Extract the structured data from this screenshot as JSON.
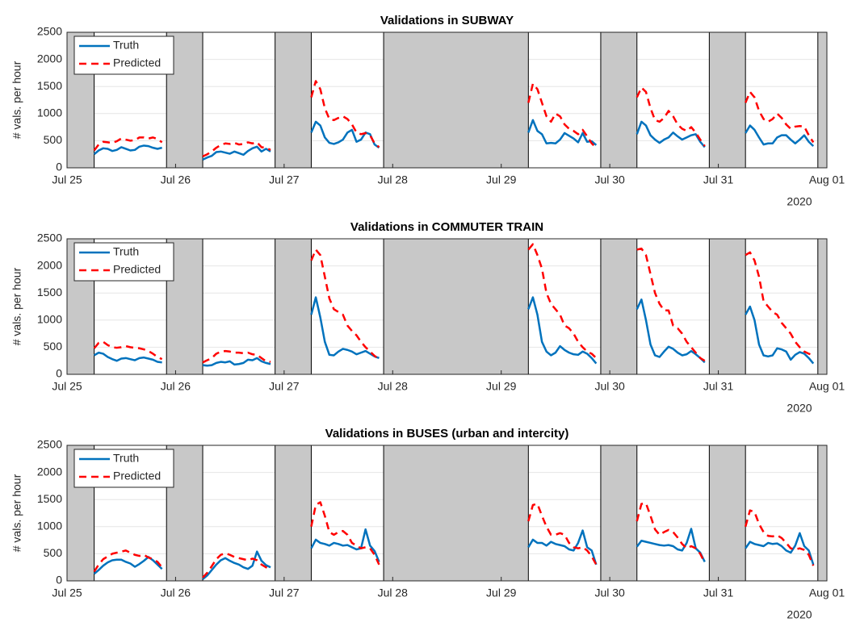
{
  "chart_data": [
    {
      "type": "line",
      "title": "Validations in SUBWAY",
      "ylabel": "# vals. per hour",
      "year_label": "2020",
      "xlim": [
        0,
        168
      ],
      "ylim": [
        0,
        2500
      ],
      "yticks": [
        0,
        500,
        1000,
        1500,
        2000,
        2500
      ],
      "xticks": [
        {
          "value": 0,
          "label": "Jul 25"
        },
        {
          "value": 24,
          "label": "Jul 26"
        },
        {
          "value": 48,
          "label": "Jul 27"
        },
        {
          "value": 72,
          "label": "Jul 28"
        },
        {
          "value": 96,
          "label": "Jul 29"
        },
        {
          "value": 120,
          "label": "Jul 30"
        },
        {
          "value": 144,
          "label": "Jul 31"
        },
        {
          "value": 168,
          "label": "Aug 01"
        }
      ],
      "grid": true,
      "legend": "upper left",
      "shade_color": "#c8c8c8",
      "closures": [
        [
          0,
          6
        ],
        [
          22,
          30
        ],
        [
          46,
          54
        ],
        [
          70,
          102
        ],
        [
          118,
          126
        ],
        [
          142,
          150
        ],
        [
          166,
          168
        ]
      ],
      "x": [
        6,
        7,
        8,
        9,
        10,
        11,
        12,
        13,
        14,
        15,
        16,
        17,
        18,
        19,
        20,
        21,
        22,
        30,
        31,
        32,
        33,
        34,
        35,
        36,
        37,
        38,
        39,
        40,
        41,
        42,
        43,
        44,
        45,
        46,
        54,
        55,
        56,
        57,
        58,
        59,
        60,
        61,
        62,
        63,
        64,
        65,
        66,
        67,
        68,
        69,
        70,
        102,
        103,
        104,
        105,
        106,
        107,
        108,
        109,
        110,
        111,
        112,
        113,
        114,
        115,
        116,
        117,
        118,
        126,
        127,
        128,
        129,
        130,
        131,
        132,
        133,
        134,
        135,
        136,
        137,
        138,
        139,
        140,
        141,
        142,
        150,
        151,
        152,
        153,
        154,
        155,
        156,
        157,
        158,
        159,
        160,
        161,
        162,
        163,
        164,
        165
      ],
      "series": [
        {
          "name": "Truth",
          "color": "#0072bd",
          "dash": false,
          "values": [
            250,
            320,
            360,
            350,
            310,
            330,
            380,
            350,
            320,
            330,
            390,
            410,
            400,
            370,
            350,
            370,
            null,
            150,
            190,
            220,
            290,
            300,
            280,
            260,
            300,
            270,
            240,
            310,
            360,
            390,
            300,
            350,
            300,
            null,
            650,
            850,
            780,
            560,
            460,
            440,
            470,
            520,
            650,
            700,
            480,
            520,
            650,
            620,
            430,
            370,
            null,
            650,
            880,
            680,
            620,
            450,
            460,
            450,
            520,
            640,
            590,
            540,
            470,
            640,
            480,
            490,
            420,
            null,
            620,
            850,
            780,
            600,
            520,
            460,
            520,
            560,
            650,
            580,
            520,
            560,
            600,
            620,
            480,
            380,
            null,
            640,
            780,
            700,
            560,
            430,
            450,
            450,
            560,
            600,
            600,
            520,
            450,
            520,
            600,
            480,
            400
          ]
        },
        {
          "name": "Predicted",
          "color": "#ff0000",
          "dash": true,
          "values": [
            320,
            430,
            480,
            470,
            460,
            490,
            540,
            520,
            500,
            510,
            560,
            560,
            540,
            560,
            530,
            470,
            null,
            210,
            250,
            300,
            370,
            420,
            450,
            440,
            460,
            430,
            440,
            470,
            450,
            470,
            380,
            370,
            330,
            null,
            1300,
            1600,
            1450,
            1100,
            900,
            880,
            920,
            950,
            900,
            800,
            650,
            620,
            640,
            600,
            450,
            380,
            null,
            1200,
            1550,
            1450,
            1200,
            950,
            850,
            1000,
            950,
            800,
            720,
            680,
            620,
            700,
            580,
            450,
            370,
            null,
            1300,
            1480,
            1400,
            1100,
            880,
            850,
            920,
            1050,
            950,
            800,
            720,
            680,
            750,
            650,
            520,
            400,
            null,
            1200,
            1400,
            1300,
            1050,
            900,
            850,
            900,
            1000,
            920,
            800,
            720,
            760,
            770,
            760,
            600,
            470
          ]
        }
      ]
    },
    {
      "type": "line",
      "title": "Validations in COMMUTER TRAIN",
      "ylabel": "# vals. per hour",
      "year_label": "2020",
      "xlim": [
        0,
        168
      ],
      "ylim": [
        0,
        2500
      ],
      "yticks": [
        0,
        500,
        1000,
        1500,
        2000,
        2500
      ],
      "xticks": [
        {
          "value": 0,
          "label": "Jul 25"
        },
        {
          "value": 24,
          "label": "Jul 26"
        },
        {
          "value": 48,
          "label": "Jul 27"
        },
        {
          "value": 72,
          "label": "Jul 28"
        },
        {
          "value": 96,
          "label": "Jul 29"
        },
        {
          "value": 120,
          "label": "Jul 30"
        },
        {
          "value": 144,
          "label": "Jul 31"
        },
        {
          "value": 168,
          "label": "Aug 01"
        }
      ],
      "grid": true,
      "legend": "upper left",
      "shade_color": "#c8c8c8",
      "closures": [
        [
          0,
          6
        ],
        [
          22,
          30
        ],
        [
          46,
          54
        ],
        [
          70,
          102
        ],
        [
          118,
          126
        ],
        [
          142,
          150
        ],
        [
          166,
          168
        ]
      ],
      "x": [
        6,
        7,
        8,
        9,
        10,
        11,
        12,
        13,
        14,
        15,
        16,
        17,
        18,
        19,
        20,
        21,
        22,
        30,
        31,
        32,
        33,
        34,
        35,
        36,
        37,
        38,
        39,
        40,
        41,
        42,
        43,
        44,
        45,
        46,
        54,
        55,
        56,
        57,
        58,
        59,
        60,
        61,
        62,
        63,
        64,
        65,
        66,
        67,
        68,
        69,
        70,
        102,
        103,
        104,
        105,
        106,
        107,
        108,
        109,
        110,
        111,
        112,
        113,
        114,
        115,
        116,
        117,
        118,
        126,
        127,
        128,
        129,
        130,
        131,
        132,
        133,
        134,
        135,
        136,
        137,
        138,
        139,
        140,
        141,
        142,
        150,
        151,
        152,
        153,
        154,
        155,
        156,
        157,
        158,
        159,
        160,
        161,
        162,
        163,
        164,
        165
      ],
      "series": [
        {
          "name": "Truth",
          "color": "#0072bd",
          "dash": false,
          "values": [
            350,
            400,
            380,
            320,
            280,
            250,
            290,
            300,
            280,
            260,
            300,
            310,
            290,
            270,
            230,
            220,
            null,
            170,
            160,
            170,
            210,
            230,
            220,
            240,
            180,
            190,
            210,
            270,
            260,
            300,
            240,
            210,
            190,
            null,
            1100,
            1420,
            1050,
            600,
            360,
            350,
            420,
            470,
            450,
            420,
            370,
            400,
            430,
            380,
            330,
            300,
            null,
            1200,
            1420,
            1100,
            600,
            420,
            350,
            400,
            520,
            450,
            400,
            370,
            360,
            420,
            380,
            300,
            200,
            null,
            1200,
            1380,
            1000,
            550,
            350,
            320,
            420,
            510,
            470,
            400,
            350,
            370,
            430,
            370,
            300,
            220,
            null,
            1100,
            1250,
            1000,
            550,
            350,
            330,
            350,
            480,
            460,
            420,
            270,
            360,
            410,
            380,
            300,
            200
          ]
        },
        {
          "name": "Predicted",
          "color": "#ff0000",
          "dash": true,
          "values": [
            480,
            580,
            600,
            540,
            500,
            490,
            500,
            520,
            500,
            490,
            480,
            460,
            430,
            380,
            320,
            280,
            null,
            220,
            260,
            300,
            380,
            420,
            430,
            420,
            400,
            400,
            390,
            400,
            370,
            360,
            300,
            240,
            230,
            null,
            2100,
            2300,
            2200,
            1800,
            1400,
            1200,
            1150,
            1100,
            900,
            800,
            720,
            600,
            500,
            420,
            340,
            280,
            null,
            2300,
            2400,
            2200,
            1950,
            1500,
            1300,
            1200,
            1100,
            900,
            850,
            750,
            600,
            500,
            420,
            380,
            300,
            null,
            2300,
            2320,
            2200,
            1850,
            1500,
            1300,
            1180,
            1180,
            900,
            850,
            750,
            600,
            500,
            400,
            300,
            250,
            null,
            2200,
            2250,
            2100,
            1800,
            1350,
            1250,
            1150,
            1100,
            950,
            850,
            750,
            600,
            500,
            420,
            380,
            350
          ]
        }
      ]
    },
    {
      "type": "line",
      "title": "Validations in BUSES (urban and intercity)",
      "ylabel": "# vals. per hour",
      "year_label": "2020",
      "xlim": [
        0,
        168
      ],
      "ylim": [
        0,
        2500
      ],
      "yticks": [
        0,
        500,
        1000,
        1500,
        2000,
        2500
      ],
      "xticks": [
        {
          "value": 0,
          "label": "Jul 25"
        },
        {
          "value": 24,
          "label": "Jul 26"
        },
        {
          "value": 48,
          "label": "Jul 27"
        },
        {
          "value": 72,
          "label": "Jul 28"
        },
        {
          "value": 96,
          "label": "Jul 29"
        },
        {
          "value": 120,
          "label": "Jul 30"
        },
        {
          "value": 144,
          "label": "Jul 31"
        },
        {
          "value": 168,
          "label": "Aug 01"
        }
      ],
      "grid": true,
      "legend": "upper left",
      "shade_color": "#c8c8c8",
      "closures": [
        [
          0,
          6
        ],
        [
          22,
          30
        ],
        [
          46,
          54
        ],
        [
          70,
          102
        ],
        [
          118,
          126
        ],
        [
          142,
          150
        ],
        [
          166,
          168
        ]
      ],
      "x": [
        6,
        7,
        8,
        9,
        10,
        11,
        12,
        13,
        14,
        15,
        16,
        17,
        18,
        19,
        20,
        21,
        22,
        30,
        31,
        32,
        33,
        34,
        35,
        36,
        37,
        38,
        39,
        40,
        41,
        42,
        43,
        44,
        45,
        46,
        54,
        55,
        56,
        57,
        58,
        59,
        60,
        61,
        62,
        63,
        64,
        65,
        66,
        67,
        68,
        69,
        70,
        102,
        103,
        104,
        105,
        106,
        107,
        108,
        109,
        110,
        111,
        112,
        113,
        114,
        115,
        116,
        117,
        118,
        126,
        127,
        128,
        129,
        130,
        131,
        132,
        133,
        134,
        135,
        136,
        137,
        138,
        139,
        140,
        141,
        142,
        150,
        151,
        152,
        153,
        154,
        155,
        156,
        157,
        158,
        159,
        160,
        161,
        162,
        163,
        164,
        165
      ],
      "series": [
        {
          "name": "Truth",
          "color": "#0072bd",
          "dash": false,
          "values": [
            130,
            200,
            280,
            340,
            380,
            390,
            390,
            350,
            320,
            260,
            310,
            370,
            440,
            380,
            300,
            220,
            null,
            30,
            100,
            200,
            300,
            380,
            420,
            370,
            330,
            300,
            250,
            220,
            280,
            540,
            370,
            290,
            250,
            null,
            600,
            760,
            700,
            680,
            650,
            700,
            680,
            650,
            660,
            620,
            580,
            600,
            950,
            650,
            550,
            350,
            null,
            620,
            760,
            700,
            700,
            650,
            720,
            680,
            660,
            640,
            580,
            560,
            700,
            930,
            620,
            560,
            300,
            null,
            630,
            740,
            720,
            700,
            680,
            660,
            650,
            660,
            640,
            580,
            560,
            700,
            960,
            600,
            520,
            350,
            null,
            600,
            720,
            680,
            660,
            640,
            700,
            680,
            690,
            640,
            560,
            520,
            650,
            880,
            640,
            560,
            300
          ]
        },
        {
          "name": "Predicted",
          "color": "#ff0000",
          "dash": true,
          "values": [
            170,
            300,
            400,
            450,
            500,
            520,
            540,
            560,
            520,
            480,
            460,
            480,
            430,
            400,
            350,
            250,
            null,
            60,
            150,
            270,
            400,
            480,
            510,
            480,
            440,
            420,
            400,
            380,
            410,
            380,
            300,
            250,
            200,
            null,
            1000,
            1400,
            1450,
            1200,
            900,
            850,
            900,
            920,
            850,
            700,
            650,
            600,
            620,
            600,
            480,
            300,
            null,
            1100,
            1400,
            1420,
            1200,
            1000,
            850,
            850,
            880,
            850,
            700,
            620,
            600,
            620,
            560,
            450,
            300,
            null,
            1100,
            1420,
            1430,
            1200,
            950,
            850,
            900,
            940,
            900,
            800,
            680,
            600,
            640,
            600,
            500,
            330,
            null,
            1000,
            1300,
            1270,
            1050,
            900,
            830,
            820,
            840,
            790,
            700,
            600,
            580,
            600,
            570,
            480,
            280
          ]
        }
      ]
    }
  ]
}
